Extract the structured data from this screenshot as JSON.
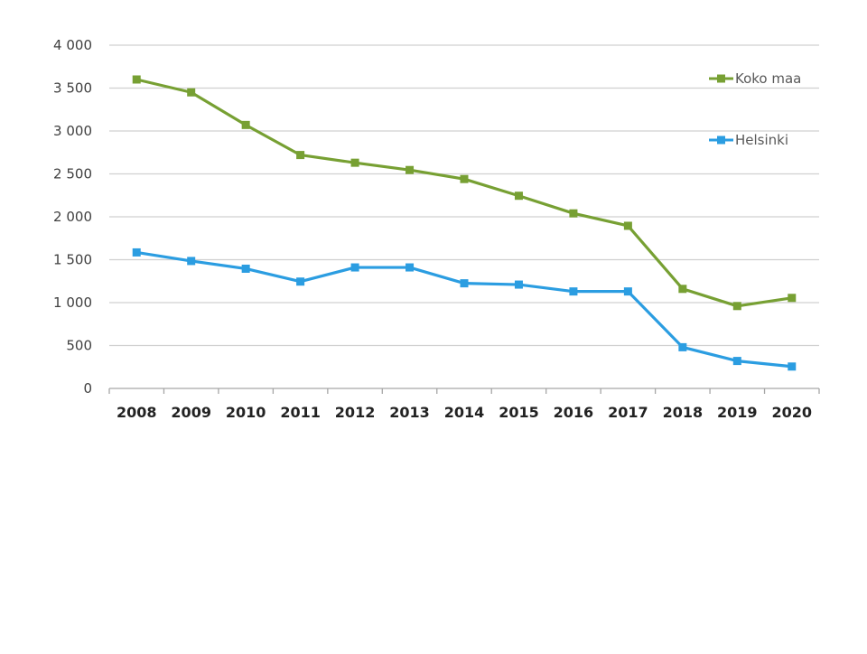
{
  "chart_data": {
    "type": "line",
    "categories": [
      "2008",
      "2009",
      "2010",
      "2011",
      "2012",
      "2013",
      "2014",
      "2015",
      "2016",
      "2017",
      "2018",
      "2019",
      "2020"
    ],
    "series": [
      {
        "name": "Koko maa",
        "color": "#77a033",
        "values": [
          3600,
          3450,
          3070,
          2720,
          2630,
          2545,
          2440,
          2245,
          2040,
          1895,
          1160,
          960,
          1055
        ]
      },
      {
        "name": "Helsinki",
        "color": "#2b9de1",
        "values": [
          1585,
          1485,
          1395,
          1245,
          1410,
          1410,
          1225,
          1210,
          1130,
          1130,
          480,
          320,
          255
        ]
      }
    ],
    "yticks": [
      "4 000",
      "3 500",
      "3 000",
      "2 500",
      "2 000",
      "1 500",
      "1 000",
      "500",
      "0"
    ],
    "ylim": [
      0,
      4000
    ],
    "grid": true,
    "legend_position": "top-right",
    "title": "",
    "xlabel": "",
    "ylabel": "",
    "colors": {
      "grid": "#d0d0d0",
      "axis": "#a6a6a6"
    }
  }
}
